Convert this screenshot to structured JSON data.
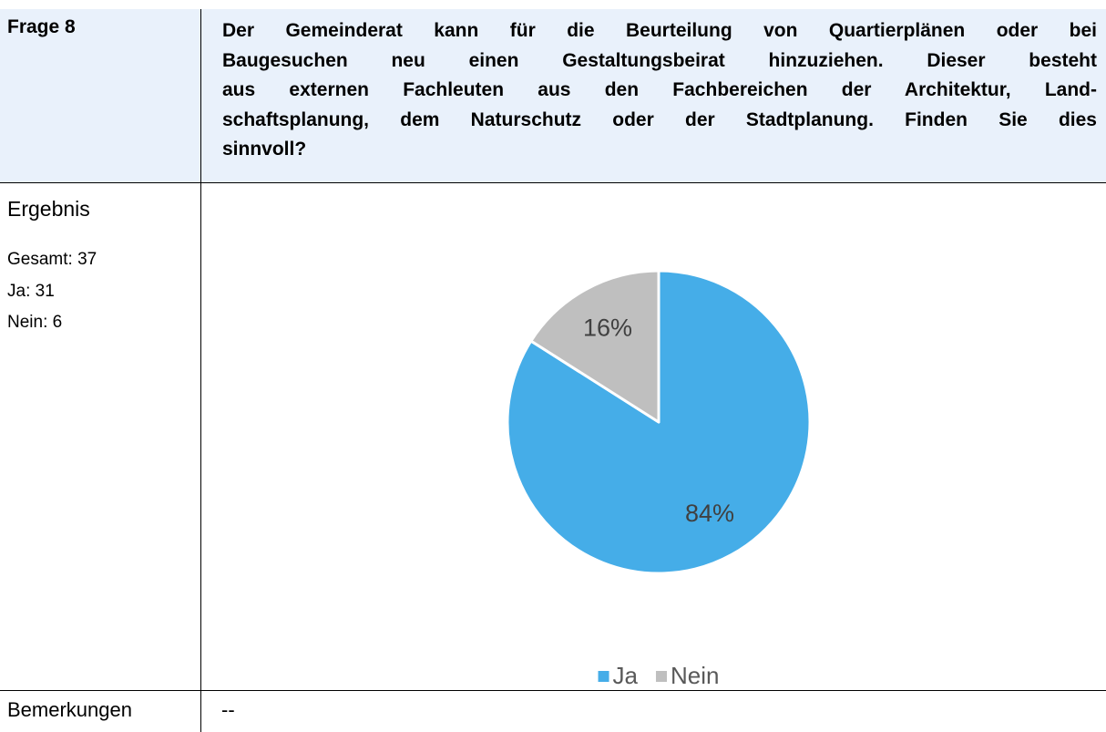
{
  "header": {
    "label": "Frage 8",
    "question_lines": [
      "Der Gemeinderat kann für die Beurteilung von Quartierplänen oder bei",
      "Baugesuchen neu einen Gestaltungsbeirat hinzuziehen. Dieser besteht",
      "aus externen Fachleuten aus den Fachbereichen der Architektur, Land-",
      "schaftsplanung, dem Naturschutz oder der Stadtplanung. Finden Sie dies",
      "sinnvoll?"
    ]
  },
  "result": {
    "label": "Ergebnis",
    "stats": [
      "Gesamt: 37",
      "Ja: 31",
      "Nein: 6"
    ]
  },
  "chart_data": {
    "type": "pie",
    "categories": [
      "Ja",
      "Nein"
    ],
    "values": [
      84,
      16
    ],
    "value_labels": [
      "84%",
      "16%"
    ],
    "colors": [
      "#45ade8",
      "#bfbfbf"
    ],
    "legend": "bottom"
  },
  "remarks": {
    "label": "Bemerkungen",
    "text": "--"
  }
}
